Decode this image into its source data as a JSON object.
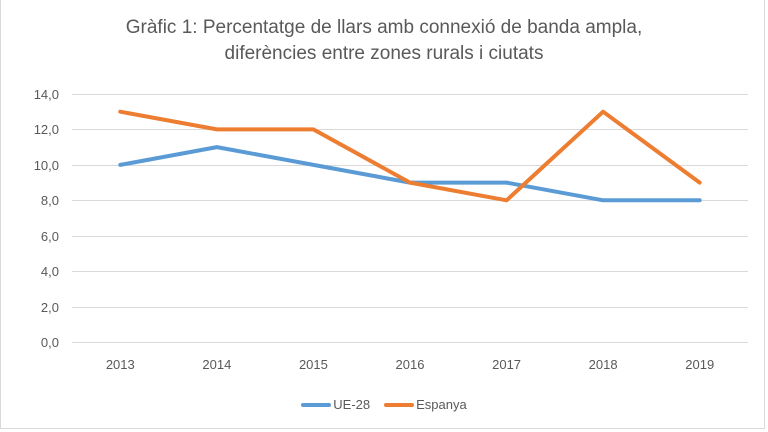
{
  "chart_data": {
    "type": "line",
    "title": "Gràfic 1: Percentatge de llars amb connexió de banda ampla, diferències entre zones rurals i ciutats",
    "title_lines": [
      "Gràfic 1: Percentatge de llars amb connexió de banda ampla,",
      "diferències entre zones rurals i ciutats"
    ],
    "xlabel": "",
    "ylabel": "",
    "categories": [
      "2013",
      "2014",
      "2015",
      "2016",
      "2017",
      "2018",
      "2019"
    ],
    "y_ticks": [
      "0,0",
      "2,0",
      "4,0",
      "6,0",
      "8,0",
      "10,0",
      "12,0",
      "14,0"
    ],
    "ylim": [
      0,
      14
    ],
    "y_step": 2,
    "grid": true,
    "legend_position": "bottom",
    "series": [
      {
        "name": "UE-28",
        "color": "#5b9bd5",
        "values": [
          10,
          11,
          10,
          9,
          9,
          8,
          8
        ]
      },
      {
        "name": "Espanya",
        "color": "#ed7d31",
        "values": [
          13,
          12,
          12,
          9,
          8,
          13,
          9
        ]
      }
    ]
  }
}
